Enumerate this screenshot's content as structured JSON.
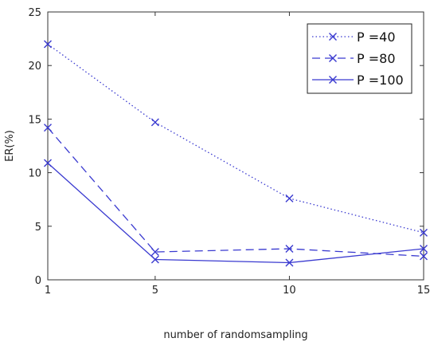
{
  "chart_data": {
    "type": "line",
    "xlabel": "number of randomsampling",
    "ylabel": "ER(%)",
    "xlim": [
      1,
      15
    ],
    "ylim": [
      0,
      25
    ],
    "xticks": [
      1,
      5,
      10,
      15
    ],
    "yticks": [
      0,
      5,
      10,
      15,
      20,
      25
    ],
    "grid": false,
    "legend_position": "top-right",
    "marker": "x",
    "color": "#3a3ad0",
    "x": [
      1,
      5,
      10,
      15
    ],
    "series": [
      {
        "name": "P =40",
        "line_style": "dotted",
        "values": [
          22.0,
          14.7,
          7.6,
          4.4
        ]
      },
      {
        "name": "P =80",
        "line_style": "dashed",
        "values": [
          14.2,
          2.6,
          2.9,
          2.2
        ]
      },
      {
        "name": "P =100",
        "line_style": "solid",
        "values": [
          10.9,
          1.9,
          1.6,
          2.9
        ]
      }
    ]
  }
}
